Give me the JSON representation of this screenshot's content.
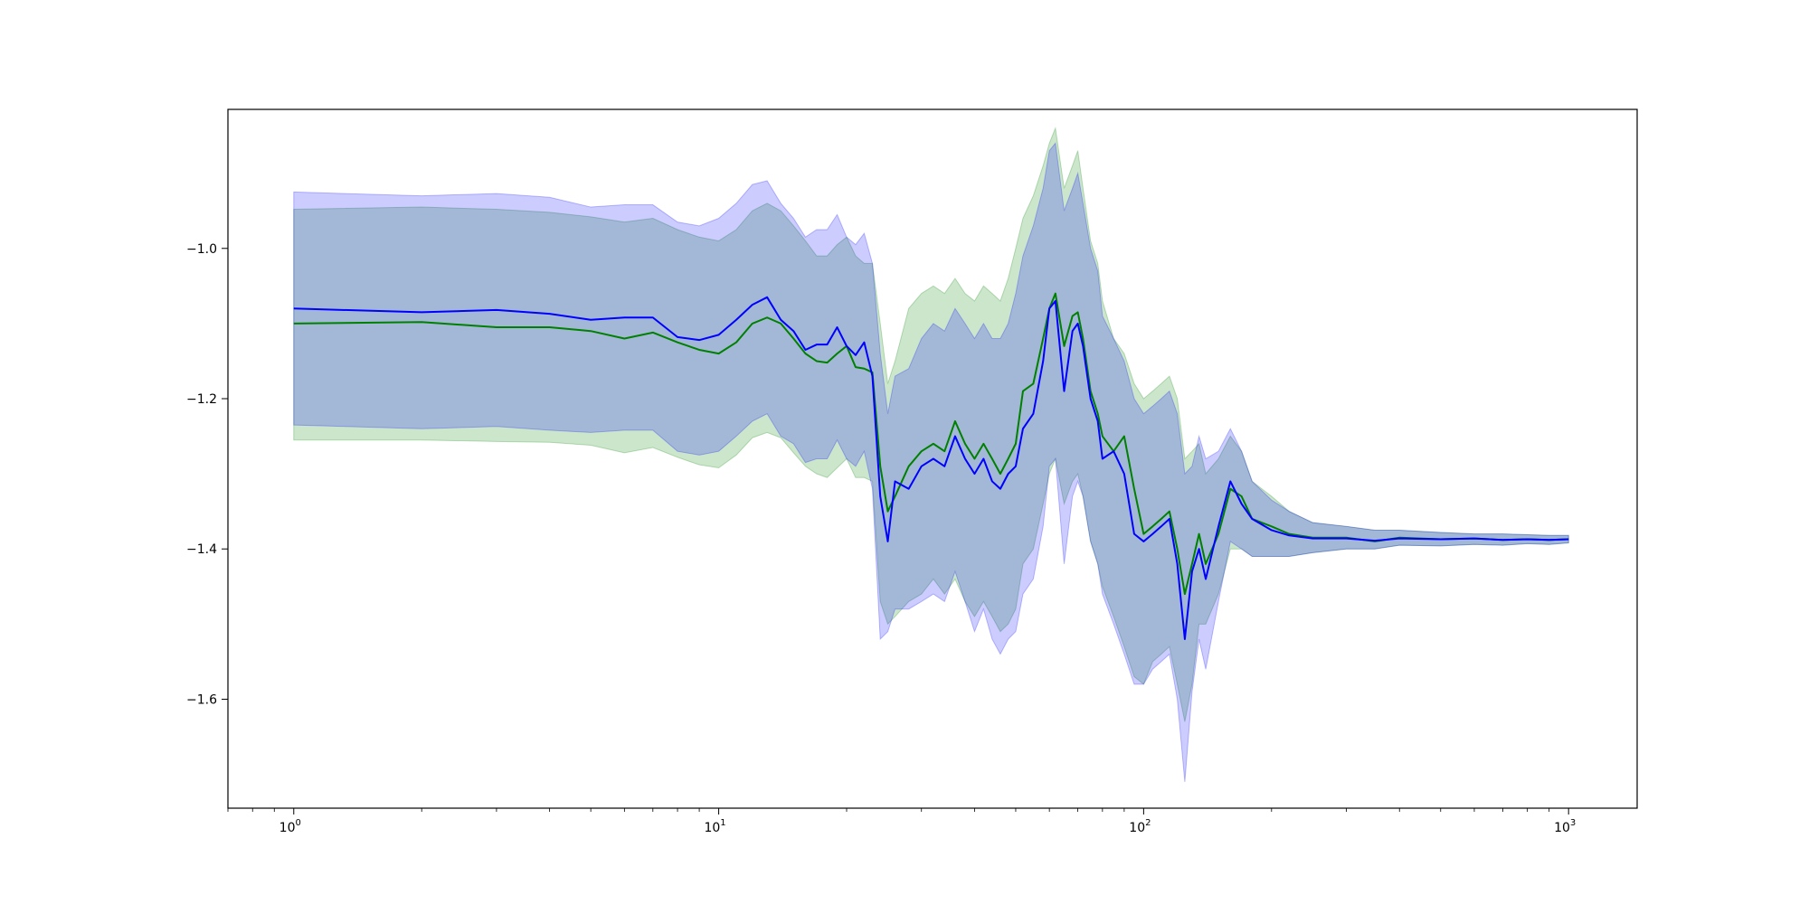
{
  "chart_data": {
    "type": "line",
    "title": "",
    "xlabel": "",
    "ylabel": "",
    "x_scale": "log",
    "xlim": [
      0.7,
      1450
    ],
    "ylim": [
      -1.745,
      -0.815
    ],
    "grid": false,
    "legend": "none",
    "x_ticks": [
      {
        "base": "10",
        "exp": "0",
        "value": 1
      },
      {
        "base": "10",
        "exp": "1",
        "value": 10
      },
      {
        "base": "10",
        "exp": "2",
        "value": 100
      },
      {
        "base": "10",
        "exp": "3",
        "value": 1000
      }
    ],
    "y_ticks": [
      {
        "label": "−1.0",
        "value": -1.0
      },
      {
        "label": "−1.2",
        "value": -1.2
      },
      {
        "label": "−1.4",
        "value": -1.4
      },
      {
        "label": "−1.6",
        "value": -1.6
      }
    ],
    "colors": {
      "green_line": "#008000",
      "blue_line": "#0000ff",
      "green_band": "#008000",
      "blue_band": "#0000ff"
    },
    "series": [
      {
        "color": "green",
        "x": [
          1,
          2,
          3,
          4,
          5,
          6,
          7,
          8,
          9,
          10,
          11,
          12,
          13,
          14,
          15,
          16,
          17,
          18,
          19,
          20,
          21,
          22,
          23,
          24,
          25,
          26,
          28,
          30,
          32,
          34,
          36,
          38,
          40,
          42,
          44,
          46,
          48,
          50,
          52,
          55,
          58,
          60,
          62,
          65,
          68,
          70,
          72,
          75,
          78,
          80,
          85,
          90,
          95,
          100,
          105,
          110,
          115,
          120,
          125,
          130,
          135,
          140,
          150,
          160,
          170,
          180,
          200,
          220,
          250,
          300,
          350,
          400,
          500,
          600,
          700,
          800,
          900,
          1000
        ],
        "y": [
          -1.1,
          -1.098,
          -1.105,
          -1.105,
          -1.11,
          -1.12,
          -1.112,
          -1.125,
          -1.135,
          -1.14,
          -1.125,
          -1.1,
          -1.092,
          -1.1,
          -1.12,
          -1.14,
          -1.15,
          -1.152,
          -1.14,
          -1.13,
          -1.158,
          -1.16,
          -1.165,
          -1.29,
          -1.35,
          -1.33,
          -1.29,
          -1.27,
          -1.26,
          -1.27,
          -1.23,
          -1.26,
          -1.28,
          -1.26,
          -1.28,
          -1.3,
          -1.28,
          -1.26,
          -1.19,
          -1.18,
          -1.12,
          -1.08,
          -1.06,
          -1.13,
          -1.09,
          -1.085,
          -1.12,
          -1.19,
          -1.22,
          -1.25,
          -1.27,
          -1.25,
          -1.32,
          -1.38,
          -1.37,
          -1.36,
          -1.35,
          -1.4,
          -1.46,
          -1.42,
          -1.38,
          -1.42,
          -1.38,
          -1.32,
          -1.33,
          -1.36,
          -1.37,
          -1.38,
          -1.385,
          -1.385,
          -1.39,
          -1.385,
          -1.387,
          -1.386,
          -1.388,
          -1.387,
          -1.388,
          -1.387
        ],
        "upper": [
          -0.948,
          -0.945,
          -0.948,
          -0.952,
          -0.958,
          -0.965,
          -0.96,
          -0.975,
          -0.985,
          -0.99,
          -0.975,
          -0.95,
          -0.94,
          -0.95,
          -0.97,
          -0.99,
          -1.01,
          -1.01,
          -0.995,
          -0.985,
          -1.01,
          -1.02,
          -1.02,
          -1.1,
          -1.18,
          -1.15,
          -1.08,
          -1.06,
          -1.05,
          -1.06,
          -1.04,
          -1.06,
          -1.07,
          -1.05,
          -1.06,
          -1.07,
          -1.04,
          -1.0,
          -0.96,
          -0.93,
          -0.89,
          -0.86,
          -0.84,
          -0.92,
          -0.89,
          -0.87,
          -0.92,
          -0.99,
          -1.02,
          -1.07,
          -1.12,
          -1.14,
          -1.18,
          -1.2,
          -1.19,
          -1.18,
          -1.17,
          -1.2,
          -1.28,
          -1.27,
          -1.26,
          -1.3,
          -1.28,
          -1.25,
          -1.27,
          -1.31,
          -1.33,
          -1.35,
          -1.365,
          -1.37,
          -1.375,
          -1.375,
          -1.378,
          -1.38,
          -1.38,
          -1.381,
          -1.382,
          -1.382
        ],
        "lower": [
          -1.255,
          -1.255,
          -1.257,
          -1.258,
          -1.262,
          -1.272,
          -1.265,
          -1.278,
          -1.288,
          -1.292,
          -1.275,
          -1.252,
          -1.245,
          -1.252,
          -1.272,
          -1.29,
          -1.3,
          -1.305,
          -1.292,
          -1.28,
          -1.305,
          -1.305,
          -1.31,
          -1.47,
          -1.5,
          -1.49,
          -1.47,
          -1.46,
          -1.44,
          -1.46,
          -1.44,
          -1.47,
          -1.49,
          -1.47,
          -1.49,
          -1.51,
          -1.5,
          -1.48,
          -1.42,
          -1.4,
          -1.34,
          -1.3,
          -1.28,
          -1.34,
          -1.31,
          -1.3,
          -1.33,
          -1.39,
          -1.42,
          -1.45,
          -1.49,
          -1.53,
          -1.57,
          -1.58,
          -1.55,
          -1.54,
          -1.53,
          -1.58,
          -1.63,
          -1.58,
          -1.5,
          -1.5,
          -1.46,
          -1.4,
          -1.4,
          -1.41,
          -1.41,
          -1.41,
          -1.405,
          -1.4,
          -1.4,
          -1.395,
          -1.396,
          -1.394,
          -1.395,
          -1.393,
          -1.394,
          -1.392
        ]
      },
      {
        "color": "blue",
        "x": [
          1,
          2,
          3,
          4,
          5,
          6,
          7,
          8,
          9,
          10,
          11,
          12,
          13,
          14,
          15,
          16,
          17,
          18,
          19,
          20,
          21,
          22,
          23,
          24,
          25,
          26,
          28,
          30,
          32,
          34,
          36,
          38,
          40,
          42,
          44,
          46,
          48,
          50,
          52,
          55,
          58,
          60,
          62,
          65,
          68,
          70,
          72,
          75,
          78,
          80,
          85,
          90,
          95,
          100,
          105,
          110,
          115,
          120,
          125,
          130,
          135,
          140,
          150,
          160,
          170,
          180,
          200,
          220,
          250,
          300,
          350,
          400,
          500,
          600,
          700,
          800,
          900,
          1000
        ],
        "y": [
          -1.08,
          -1.085,
          -1.082,
          -1.087,
          -1.095,
          -1.092,
          -1.092,
          -1.118,
          -1.122,
          -1.115,
          -1.095,
          -1.075,
          -1.065,
          -1.095,
          -1.11,
          -1.135,
          -1.128,
          -1.128,
          -1.105,
          -1.13,
          -1.142,
          -1.125,
          -1.17,
          -1.33,
          -1.39,
          -1.31,
          -1.32,
          -1.29,
          -1.28,
          -1.29,
          -1.25,
          -1.28,
          -1.3,
          -1.28,
          -1.31,
          -1.32,
          -1.3,
          -1.29,
          -1.24,
          -1.22,
          -1.15,
          -1.08,
          -1.07,
          -1.19,
          -1.11,
          -1.1,
          -1.13,
          -1.2,
          -1.23,
          -1.28,
          -1.27,
          -1.3,
          -1.38,
          -1.39,
          -1.38,
          -1.37,
          -1.36,
          -1.42,
          -1.52,
          -1.43,
          -1.4,
          -1.44,
          -1.37,
          -1.31,
          -1.34,
          -1.36,
          -1.375,
          -1.382,
          -1.386,
          -1.386,
          -1.389,
          -1.386,
          -1.387,
          -1.386,
          -1.388,
          -1.387,
          -1.388,
          -1.387
        ],
        "upper": [
          -0.925,
          -0.93,
          -0.927,
          -0.932,
          -0.945,
          -0.942,
          -0.942,
          -0.965,
          -0.97,
          -0.96,
          -0.94,
          -0.915,
          -0.91,
          -0.94,
          -0.96,
          -0.985,
          -0.975,
          -0.975,
          -0.955,
          -0.985,
          -0.995,
          -0.98,
          -1.02,
          -1.14,
          -1.22,
          -1.17,
          -1.16,
          -1.12,
          -1.1,
          -1.11,
          -1.08,
          -1.1,
          -1.12,
          -1.1,
          -1.12,
          -1.12,
          -1.1,
          -1.06,
          -1.01,
          -0.97,
          -0.92,
          -0.87,
          -0.86,
          -0.95,
          -0.92,
          -0.9,
          -0.94,
          -1.0,
          -1.03,
          -1.09,
          -1.12,
          -1.15,
          -1.2,
          -1.22,
          -1.21,
          -1.2,
          -1.19,
          -1.22,
          -1.3,
          -1.29,
          -1.25,
          -1.28,
          -1.27,
          -1.24,
          -1.27,
          -1.31,
          -1.335,
          -1.35,
          -1.365,
          -1.37,
          -1.375,
          -1.375,
          -1.378,
          -1.38,
          -1.38,
          -1.381,
          -1.382,
          -1.382
        ],
        "lower": [
          -1.235,
          -1.24,
          -1.237,
          -1.242,
          -1.245,
          -1.242,
          -1.242,
          -1.27,
          -1.275,
          -1.27,
          -1.25,
          -1.23,
          -1.22,
          -1.25,
          -1.26,
          -1.285,
          -1.28,
          -1.28,
          -1.255,
          -1.28,
          -1.29,
          -1.27,
          -1.32,
          -1.52,
          -1.51,
          -1.48,
          -1.48,
          -1.47,
          -1.46,
          -1.47,
          -1.43,
          -1.47,
          -1.51,
          -1.48,
          -1.52,
          -1.54,
          -1.52,
          -1.51,
          -1.46,
          -1.44,
          -1.37,
          -1.29,
          -1.28,
          -1.42,
          -1.33,
          -1.31,
          -1.33,
          -1.39,
          -1.42,
          -1.46,
          -1.5,
          -1.54,
          -1.58,
          -1.58,
          -1.56,
          -1.55,
          -1.54,
          -1.6,
          -1.71,
          -1.59,
          -1.52,
          -1.56,
          -1.47,
          -1.39,
          -1.4,
          -1.41,
          -1.41,
          -1.41,
          -1.405,
          -1.4,
          -1.4,
          -1.395,
          -1.396,
          -1.394,
          -1.395,
          -1.393,
          -1.394,
          -1.392
        ]
      }
    ]
  }
}
